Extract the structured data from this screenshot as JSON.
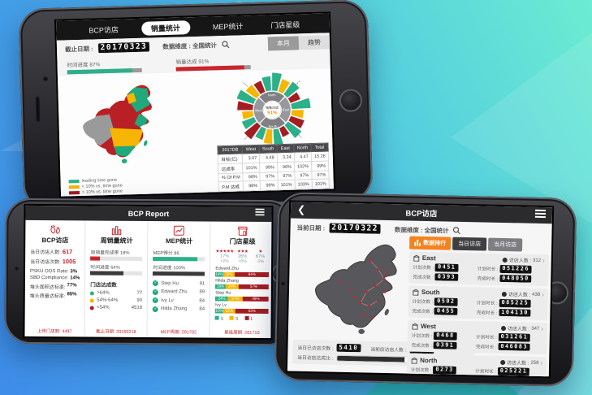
{
  "colors": {
    "green": "#2bb08a",
    "yellow": "#f6b500",
    "red": "#c9252b",
    "dark_red": "#a51d22",
    "dark": "#3a3a3c",
    "orange": "#f58220",
    "map_gray": "#58585c",
    "gold": "#eba400"
  },
  "phone_top": {
    "tabs": [
      {
        "label": "BCP访店",
        "active": false
      },
      {
        "label": "销量统计",
        "active": true
      },
      {
        "label": "MEP统计",
        "active": false
      },
      {
        "label": "门店星级",
        "active": false
      }
    ],
    "toolbar": {
      "date_label": "截止日期 :",
      "date": "20170323",
      "dim_label": "数据维度 : 全国统计",
      "month_btn": "本月",
      "trend_btn": "趋势"
    },
    "progress": [
      {
        "label": "时间进度 87%",
        "v": 87,
        "color": "#2bb08a"
      },
      {
        "label": "销量达成 91%",
        "v": 91,
        "color": "#c9252b"
      }
    ],
    "legend": [
      {
        "color": "#2bb08a",
        "label": "leading time gone"
      },
      {
        "color": "#f6b500",
        "label": "< 10% vs. time gone"
      },
      {
        "color": "#a51d22",
        "label": "> 10% vs. time gone"
      }
    ],
    "sunburst": {
      "center_label": "销售达成",
      "center_value": "91%",
      "regions": [
        "North",
        "East",
        "South",
        "West"
      ],
      "petals": [
        {
          "c": "#2bb08a",
          "l": 30
        },
        {
          "c": "#f6b500",
          "l": 22
        },
        {
          "c": "#2bb08a",
          "l": 26
        },
        {
          "c": "#a51d22",
          "l": 18
        },
        {
          "c": "#2bb08a",
          "l": 32
        },
        {
          "c": "#f6b500",
          "l": 20
        },
        {
          "c": "#a51d22",
          "l": 24
        },
        {
          "c": "#2bb08a",
          "l": 28
        },
        {
          "c": "#a51d22",
          "l": 16
        },
        {
          "c": "#2bb08a",
          "l": 30
        },
        {
          "c": "#f6b500",
          "l": 24
        },
        {
          "c": "#2bb08a",
          "l": 20
        },
        {
          "c": "#a51d22",
          "l": 28
        },
        {
          "c": "#2bb08a",
          "l": 22
        },
        {
          "c": "#f6b500",
          "l": 18
        },
        {
          "c": "#a51d22",
          "l": 26
        },
        {
          "c": "#2bb08a",
          "l": 30
        },
        {
          "c": "#f6b500",
          "l": 22
        },
        {
          "c": "#a51d22",
          "l": 20
        },
        {
          "c": "#2bb08a",
          "l": 24
        }
      ]
    },
    "table": {
      "headers": [
        "2017DB",
        "West",
        "South",
        "East",
        "North",
        "Total"
      ],
      "rows": [
        [
          "目标(亿)",
          "3.07",
          "4.48",
          "3.24",
          "4.47",
          "15.26"
        ],
        [
          "达成率",
          "101%",
          "99%",
          "96%",
          "102%",
          "99%"
        ],
        [
          "% Of P.M",
          "98%",
          "97%",
          "97%",
          "97%",
          "97%"
        ],
        [
          "P.M 达成",
          "98%",
          "99%",
          "101%",
          "103%",
          "101%"
        ]
      ]
    }
  },
  "phone_left": {
    "title": "BCP Report",
    "col1": {
      "title": "BCP访店",
      "rows": [
        {
          "label": "当日访店人数:",
          "value": "617"
        },
        {
          "label": "当日访店次数:",
          "value": "1005"
        },
        {
          "label": "PSKU OOS Rate:",
          "value": "3%"
        },
        {
          "label": "SBD Compliance:",
          "value": "14%"
        },
        {
          "label": "堆头面积达标率:",
          "value": "77%"
        },
        {
          "label": "堆头质量达标率:",
          "value": "85%"
        }
      ],
      "footer": "上传门店数: 4497"
    },
    "col2": {
      "title": "周销量统计",
      "bars": [
        {
          "label": "周销量完成率 18%",
          "v": 18,
          "color": "#c9252b"
        },
        {
          "label": "时间进度 64%",
          "v": 64,
          "color": "#3a3a3c"
        }
      ],
      "subtitle": "门店达成数",
      "items": [
        {
          "color": "#2bb08a",
          "label": ">64%",
          "value": "77"
        },
        {
          "color": "#f6b500",
          "label": "54%-64%",
          "value": "90"
        },
        {
          "color": "#a51d22",
          "label": "<54%",
          "value": "4518"
        }
      ],
      "footer": "截止日期: 20160218"
    },
    "col3": {
      "title": "MEP统计",
      "bars": [
        {
          "label": "MEP得分 86",
          "v": 86,
          "color": "#2bb08a"
        },
        {
          "label": "时间进度 100%",
          "v": 100,
          "color": "#3a3a3c"
        }
      ],
      "check": "✓",
      "items": [
        {
          "name": "Step Hu",
          "score": "91"
        },
        {
          "name": "Edward Zhu",
          "score": "89"
        },
        {
          "name": "Ivy Lv",
          "score": "84"
        },
        {
          "name": "Hilda Zhang",
          "score": "84"
        }
      ],
      "footer": "MEP周期: 201702"
    },
    "col4": {
      "title": "门店星级",
      "stars": [
        {
          "stars": "★★★★★",
          "pct": "17%",
          "delta": "<2%"
        },
        {
          "stars": "★★★",
          "pct": "26%",
          "delta": "+0%"
        },
        {
          "stars": "★",
          "pct": "67%",
          "delta": "-2%"
        }
      ],
      "people": [
        {
          "name": "Edward Zhu",
          "seg": [
            {
              "v": 14,
              "t": "14%",
              "c": "#2bb08a"
            },
            {
              "v": 22,
              "t": "22%",
              "c": "#f6b500"
            },
            {
              "v": 64,
              "t": "64%",
              "c": "#a51d22"
            }
          ]
        },
        {
          "name": "Hilda Zhang",
          "seg": [
            {
              "v": 19,
              "t": "19%",
              "c": "#2bb08a"
            },
            {
              "v": 24,
              "t": "24%",
              "c": "#f6b500"
            },
            {
              "v": 57,
              "t": "57%",
              "c": "#a51d22"
            }
          ]
        },
        {
          "name": "Step Hu",
          "seg": [
            {
              "v": 24,
              "t": "24%",
              "c": "#2bb08a"
            },
            {
              "v": 27,
              "t": "27%",
              "c": "#f6b500"
            },
            {
              "v": 49,
              "t": "49%",
              "c": "#a51d22"
            }
          ]
        },
        {
          "name": "Ivy Lv",
          "seg": [
            {
              "v": 15,
              "t": "15%",
              "c": "#2bb08a"
            },
            {
              "v": 22,
              "t": "22%",
              "c": "#f6b500"
            },
            {
              "v": 63,
              "t": "63%",
              "c": "#a51d22"
            }
          ]
        }
      ],
      "legend": [
        {
          "color": "#2bb08a",
          "label": "5"
        },
        {
          "color": "#f6b500",
          "label": "3"
        },
        {
          "color": "#a51d22",
          "label": "1"
        }
      ],
      "footer": "星级周期: 201710"
    }
  },
  "phone_right": {
    "back": "❮",
    "title": "BCP访店",
    "toolbar": {
      "date_label": "当前日期 :",
      "date": "20170322",
      "dim_label": "数据维度 : 全国统计"
    },
    "rank_btn": "数据排行",
    "tab_day": "当日访店",
    "tab_month": "当月访店",
    "stats": {
      "visits_label": "当日已访店次数 :",
      "visits": "5410",
      "people_label": "当前应访店人数 :",
      "people": "0982",
      "rate_label": "当日访店达成比 :",
      "rate_pct": "80%",
      "rate": 80
    },
    "labels": {
      "plan_count": "计划次数 :",
      "plan_time": "计划时长 :",
      "done_count": "完成次数 :",
      "done_time": "完成时长 :",
      "visitors": "访店人数 :",
      "chev": "›"
    },
    "regions": [
      {
        "name": "East",
        "visitors": "312",
        "plan_count": "0451",
        "plan_time": "051226",
        "done_count": "0393",
        "done_time": "048050"
      },
      {
        "name": "South",
        "visitors": "438",
        "plan_count": "0502",
        "plan_time": "085225",
        "done_count": "0455",
        "done_time": "104130"
      },
      {
        "name": "West",
        "visitors": "347",
        "plan_count": "0468",
        "plan_time": "031261",
        "done_count": "0391",
        "done_time": "046083"
      },
      {
        "name": "North",
        "visitors": "258",
        "plan_count": "0273",
        "plan_time": "025221",
        "done_count": "0206",
        "done_time": "022010"
      }
    ]
  }
}
